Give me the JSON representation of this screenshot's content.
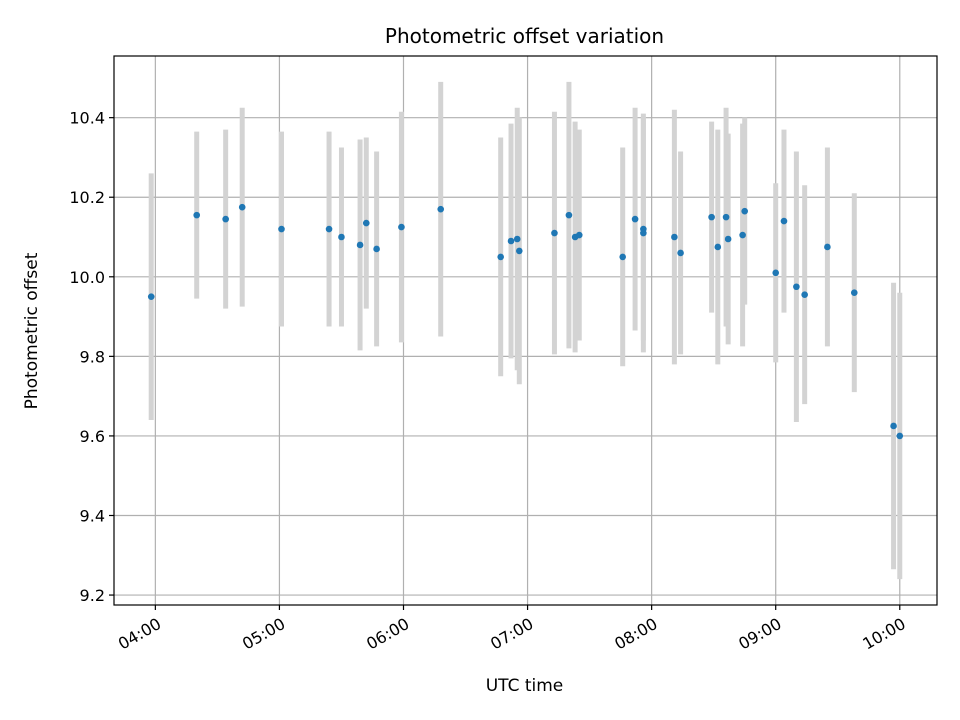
{
  "chart_data": {
    "type": "scatter",
    "title": "Photometric offset variation",
    "xlabel": "UTC time",
    "ylabel": "Photometric offset",
    "x_tick_labels": [
      "04:00",
      "05:00",
      "06:00",
      "07:00",
      "08:00",
      "09:00",
      "10:00"
    ],
    "y_tick_labels": [
      "9.2",
      "9.4",
      "9.6",
      "9.8",
      "10.0",
      "10.2",
      "10.4"
    ],
    "xlim": [
      "03:40",
      "10:18"
    ],
    "ylim": [
      9.175,
      10.555
    ],
    "grid": true,
    "error_bars": true,
    "colors": {
      "point": "#1f77b4",
      "error_bar": "#d3d3d3",
      "grid": "#b0b0b0",
      "axes": "#000000"
    },
    "points": [
      {
        "x": "03:58",
        "y": 9.95,
        "err": 0.31
      },
      {
        "x": "04:20",
        "y": 10.155,
        "err": 0.21
      },
      {
        "x": "04:34",
        "y": 10.145,
        "err": 0.225
      },
      {
        "x": "04:42",
        "y": 10.175,
        "err": 0.25
      },
      {
        "x": "05:01",
        "y": 10.12,
        "err": 0.245
      },
      {
        "x": "05:24",
        "y": 10.12,
        "err": 0.245
      },
      {
        "x": "05:30",
        "y": 10.1,
        "err": 0.225
      },
      {
        "x": "05:39",
        "y": 10.08,
        "err": 0.265
      },
      {
        "x": "05:42",
        "y": 10.135,
        "err": 0.215
      },
      {
        "x": "05:47",
        "y": 10.07,
        "err": 0.245
      },
      {
        "x": "05:59",
        "y": 10.125,
        "err": 0.29
      },
      {
        "x": "06:18",
        "y": 10.17,
        "err": 0.32
      },
      {
        "x": "06:47",
        "y": 10.05,
        "err": 0.3
      },
      {
        "x": "06:52",
        "y": 10.09,
        "err": 0.295
      },
      {
        "x": "06:55",
        "y": 10.095,
        "err": 0.33
      },
      {
        "x": "06:56",
        "y": 10.065,
        "err": 0.335
      },
      {
        "x": "07:13",
        "y": 10.11,
        "err": 0.305
      },
      {
        "x": "07:20",
        "y": 10.155,
        "err": 0.335
      },
      {
        "x": "07:23",
        "y": 10.1,
        "err": 0.29
      },
      {
        "x": "07:25",
        "y": 10.105,
        "err": 0.265
      },
      {
        "x": "07:46",
        "y": 10.05,
        "err": 0.275
      },
      {
        "x": "07:52",
        "y": 10.145,
        "err": 0.28
      },
      {
        "x": "07:56",
        "y": 10.12,
        "err": 0.28
      },
      {
        "x": "07:56",
        "y": 10.11,
        "err": 0.3
      },
      {
        "x": "08:11",
        "y": 10.1,
        "err": 0.32
      },
      {
        "x": "08:14",
        "y": 10.06,
        "err": 0.255
      },
      {
        "x": "08:29",
        "y": 10.15,
        "err": 0.24
      },
      {
        "x": "08:32",
        "y": 10.075,
        "err": 0.295
      },
      {
        "x": "08:36",
        "y": 10.15,
        "err": 0.275
      },
      {
        "x": "08:37",
        "y": 10.095,
        "err": 0.265
      },
      {
        "x": "08:44",
        "y": 10.105,
        "err": 0.28
      },
      {
        "x": "08:45",
        "y": 10.165,
        "err": 0.235
      },
      {
        "x": "09:00",
        "y": 10.01,
        "err": 0.225
      },
      {
        "x": "09:04",
        "y": 10.14,
        "err": 0.23
      },
      {
        "x": "09:10",
        "y": 9.975,
        "err": 0.34
      },
      {
        "x": "09:14",
        "y": 9.955,
        "err": 0.275
      },
      {
        "x": "09:25",
        "y": 10.075,
        "err": 0.25
      },
      {
        "x": "09:38",
        "y": 9.96,
        "err": 0.25
      },
      {
        "x": "09:57",
        "y": 9.625,
        "err": 0.36
      },
      {
        "x": "10:00",
        "y": 9.6,
        "err": 0.36
      }
    ]
  }
}
